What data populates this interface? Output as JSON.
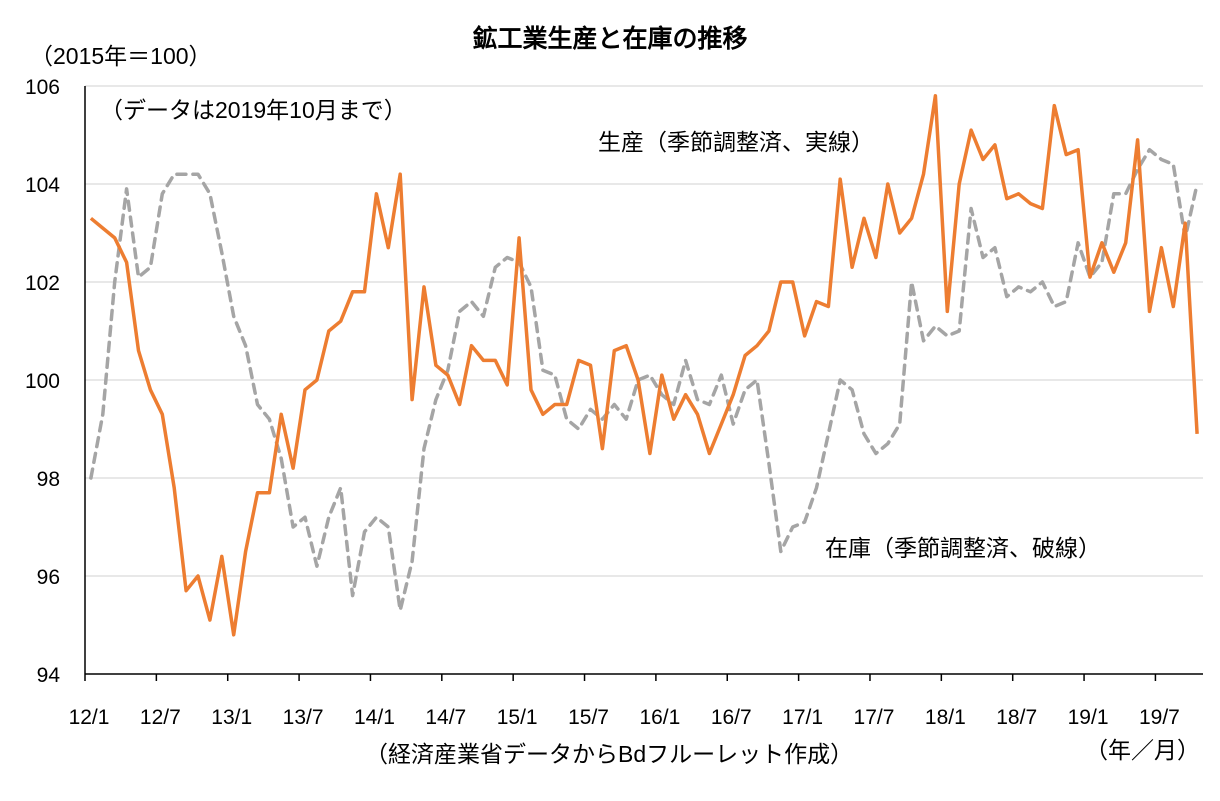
{
  "chart_data": {
    "type": "line",
    "title": "鉱工業生産と在庫の推移",
    "ylabel": "（2015年＝100）",
    "xlabel": "（年／月）",
    "note": "（データは2019年10月まで）",
    "source": "（経済産業省データからBdフルーレット作成）",
    "ylim": [
      94,
      106
    ],
    "yticks": [
      94,
      96,
      98,
      100,
      102,
      104,
      106
    ],
    "xtick_labels": [
      "12/1",
      "12/7",
      "13/1",
      "13/7",
      "14/1",
      "14/7",
      "15/1",
      "15/7",
      "16/1",
      "16/7",
      "17/1",
      "17/7",
      "18/1",
      "18/7",
      "19/1",
      "19/7"
    ],
    "x_start": "2012/1",
    "x_end": "2019/10",
    "grid": true,
    "series": [
      {
        "name": "生産（季節調整済、実線）",
        "color": "#ED7D31",
        "style": "solid",
        "values": [
          103.3,
          103.1,
          102.9,
          102.4,
          100.6,
          99.8,
          99.3,
          97.8,
          95.7,
          96.0,
          95.1,
          96.4,
          94.8,
          96.5,
          97.7,
          97.7,
          99.3,
          98.2,
          99.8,
          100.0,
          101.0,
          101.2,
          101.8,
          101.8,
          103.8,
          102.7,
          104.2,
          99.6,
          101.9,
          100.3,
          100.1,
          99.5,
          100.7,
          100.4,
          100.4,
          99.9,
          102.9,
          99.8,
          99.3,
          99.5,
          99.5,
          100.4,
          100.3,
          98.6,
          100.6,
          100.7,
          100.0,
          98.5,
          100.1,
          99.2,
          99.7,
          99.3,
          98.5,
          99.1,
          99.7,
          100.5,
          100.7,
          101.0,
          102.0,
          102.0,
          100.9,
          101.6,
          101.5,
          104.1,
          102.3,
          103.3,
          102.5,
          104.0,
          103.0,
          103.3,
          104.2,
          105.8,
          101.4,
          104.0,
          105.1,
          104.5,
          104.8,
          103.7,
          103.8,
          103.6,
          103.5,
          105.6,
          104.6,
          104.7,
          102.1,
          102.8,
          102.2,
          102.8,
          104.9,
          101.4,
          102.7,
          101.5,
          103.2,
          98.9
        ]
      },
      {
        "name": "在庫（季節調整済、破線）",
        "color": "#A5A5A5",
        "style": "dashed",
        "values": [
          98.0,
          99.3,
          102.0,
          103.9,
          102.1,
          102.3,
          103.8,
          104.2,
          104.2,
          104.2,
          103.8,
          102.6,
          101.3,
          100.7,
          99.5,
          99.2,
          98.4,
          97.0,
          97.2,
          96.2,
          97.2,
          97.8,
          95.6,
          96.9,
          97.2,
          97.0,
          95.3,
          96.3,
          98.6,
          99.6,
          100.2,
          101.4,
          101.6,
          101.3,
          102.3,
          102.5,
          102.4,
          101.9,
          100.2,
          100.1,
          99.2,
          99.0,
          99.4,
          99.2,
          99.5,
          99.2,
          100.0,
          100.1,
          99.7,
          99.5,
          100.4,
          99.6,
          99.5,
          100.1,
          99.1,
          99.8,
          100.0,
          98.3,
          96.5,
          97.0,
          97.1,
          97.8,
          98.9,
          100.0,
          99.8,
          98.9,
          98.5,
          98.7,
          99.1,
          102.0,
          100.8,
          101.1,
          100.9,
          101.0,
          103.5,
          102.5,
          102.7,
          101.7,
          101.9,
          101.8,
          102.0,
          101.5,
          101.6,
          102.8,
          102.1,
          102.4,
          103.8,
          103.8,
          104.3,
          104.7,
          104.5,
          104.4,
          102.9,
          104.0
        ]
      }
    ]
  }
}
